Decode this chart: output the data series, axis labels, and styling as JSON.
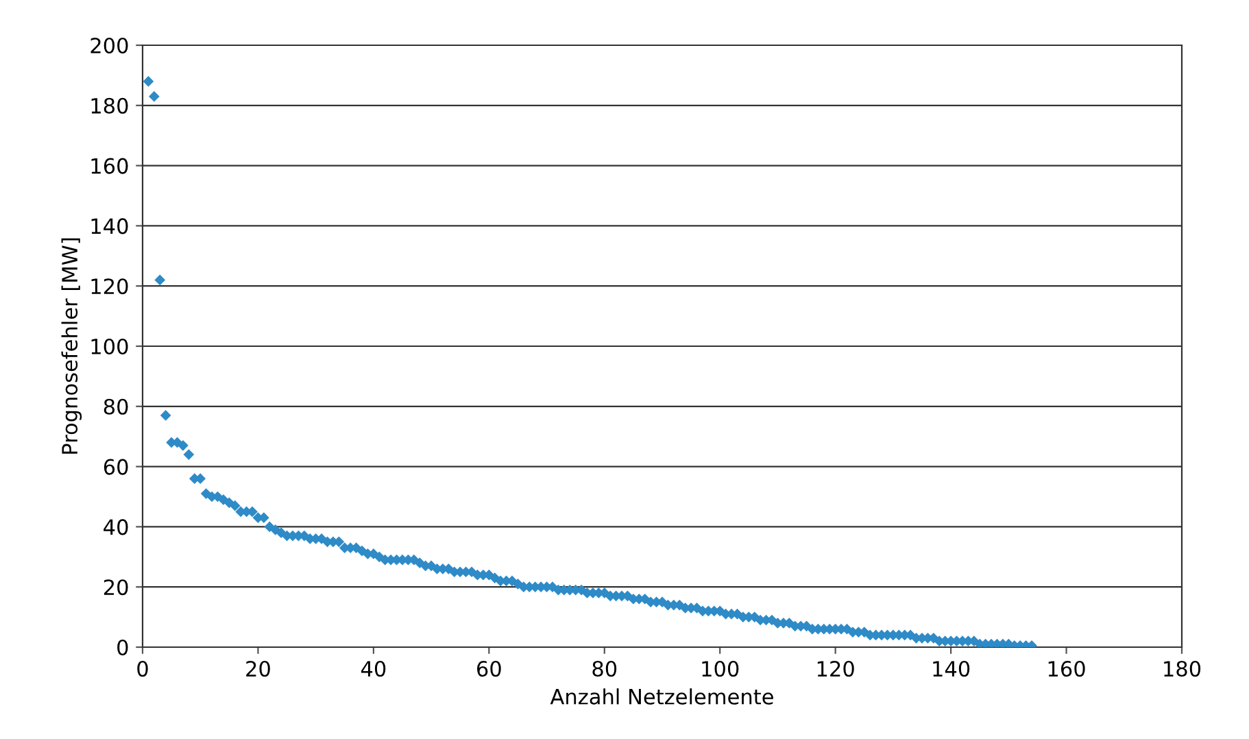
{
  "chart_data": {
    "type": "scatter",
    "xlabel": "Anzahl Netzelemente",
    "ylabel": "Prognosefehler [MW]",
    "x": [
      1,
      2,
      3,
      4,
      5,
      6,
      7,
      8,
      9,
      10,
      11,
      12,
      13,
      14,
      15,
      16,
      17,
      18,
      19,
      20,
      21,
      22,
      23,
      24,
      25,
      26,
      27,
      28,
      29,
      30,
      31,
      32,
      33,
      34,
      35,
      36,
      37,
      38,
      39,
      40,
      41,
      42,
      43,
      44,
      45,
      46,
      47,
      48,
      49,
      50,
      51,
      52,
      53,
      54,
      55,
      56,
      57,
      58,
      59,
      60,
      61,
      62,
      63,
      64,
      65,
      66,
      67,
      68,
      69,
      70,
      71,
      72,
      73,
      74,
      75,
      76,
      77,
      78,
      79,
      80,
      81,
      82,
      83,
      84,
      85,
      86,
      87,
      88,
      89,
      90,
      91,
      92,
      93,
      94,
      95,
      96,
      97,
      98,
      99,
      100,
      101,
      102,
      103,
      104,
      105,
      106,
      107,
      108,
      109,
      110,
      111,
      112,
      113,
      114,
      115,
      116,
      117,
      118,
      119,
      120,
      121,
      122,
      123,
      124,
      125,
      126,
      127,
      128,
      129,
      130,
      131,
      132,
      133,
      134,
      135,
      136,
      137,
      138,
      139,
      140,
      141,
      142,
      143,
      144,
      145,
      146,
      147,
      148,
      149,
      150,
      151,
      152,
      153,
      154
    ],
    "series": [
      {
        "color": "#2e8bc7",
        "values": [
          188,
          183,
          122,
          77,
          68,
          68,
          67,
          64,
          56,
          56,
          51,
          50,
          50,
          49,
          48,
          47,
          45,
          45,
          45,
          43,
          43,
          40,
          39,
          38,
          37,
          37,
          37,
          37,
          36,
          36,
          36,
          35,
          35,
          35,
          33,
          33,
          33,
          32,
          31,
          31,
          30,
          29,
          29,
          29,
          29,
          29,
          29,
          28,
          27,
          27,
          26,
          26,
          26,
          25,
          25,
          25,
          25,
          24,
          24,
          24,
          23,
          22,
          22,
          22,
          21,
          20,
          20,
          20,
          20,
          20,
          20,
          19,
          19,
          19,
          19,
          19,
          18,
          18,
          18,
          18,
          17,
          17,
          17,
          17,
          16,
          16,
          16,
          15,
          15,
          15,
          14,
          14,
          14,
          13,
          13,
          13,
          12,
          12,
          12,
          12,
          11,
          11,
          11,
          10,
          10,
          10,
          9,
          9,
          9,
          8,
          8,
          8,
          7,
          7,
          7,
          6,
          6,
          6,
          6,
          6,
          6,
          6,
          5,
          5,
          5,
          4,
          4,
          4,
          4,
          4,
          4,
          4,
          4,
          3,
          3,
          3,
          3,
          2,
          2,
          2,
          2,
          2,
          2,
          2,
          1,
          1,
          1,
          1,
          1,
          1,
          0.5,
          0.5,
          0.5,
          0.5
        ]
      }
    ],
    "xlim": [
      0,
      180
    ],
    "xticks": [
      0,
      20,
      40,
      60,
      80,
      100,
      120,
      140,
      160,
      180
    ],
    "ylim": [
      0,
      200
    ],
    "yticks": [
      0,
      20,
      40,
      60,
      80,
      100,
      120,
      140,
      160,
      180,
      200
    ],
    "grid": "y",
    "marker": "diamond"
  }
}
